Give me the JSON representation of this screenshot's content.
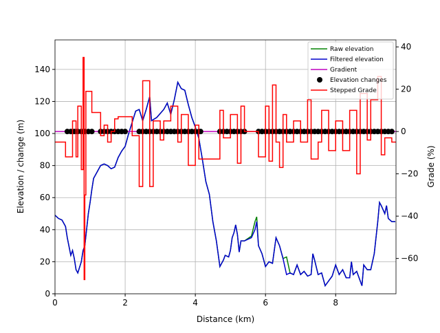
{
  "chart_data": {
    "type": "line",
    "xlabel": "Distance (km)",
    "ylabel": "Elevation / change (m)",
    "y2label": "Grade (%)",
    "xlim": [
      0,
      9.72
    ],
    "ylim": [
      0,
      158.4
    ],
    "y2lim": [
      -76.7,
      43.3
    ],
    "xticks": [
      0,
      2,
      4,
      6,
      8
    ],
    "yticks": [
      0,
      20,
      40,
      60,
      80,
      100,
      120,
      140
    ],
    "y2ticks": [
      {
        "value": -60,
        "label": "−60"
      },
      {
        "value": -40,
        "label": "−40"
      },
      {
        "value": -20,
        "label": "−20"
      },
      0,
      20,
      40
    ],
    "grid": true,
    "legend": "upper right",
    "series": [
      {
        "name": "Raw elevation",
        "color": "#008000",
        "style": "line",
        "x": [
          0,
          0.1,
          0.2,
          0.3,
          0.35,
          0.45,
          0.5,
          0.55,
          0.6,
          0.65,
          0.75,
          0.8,
          0.85,
          0.9,
          0.95,
          1.0,
          1.05,
          1.1,
          1.2,
          1.3,
          1.4,
          1.5,
          1.6,
          1.7,
          1.8,
          1.9,
          2.0,
          2.1,
          2.2,
          2.3,
          2.4,
          2.5,
          2.6,
          2.7,
          2.75,
          2.9,
          3.1,
          3.2,
          3.3,
          3.4,
          3.5,
          3.6,
          3.7,
          3.8,
          3.9,
          4.0,
          4.1,
          4.2,
          4.3,
          4.4,
          4.5,
          4.6,
          4.7,
          4.8,
          4.85,
          4.95,
          5.0,
          5.05,
          5.1,
          5.15,
          5.2,
          5.25,
          5.3,
          5.4,
          5.6,
          5.7,
          5.75,
          5.8,
          5.9,
          6.0,
          6.1,
          6.2,
          6.3,
          6.4,
          6.5,
          6.6,
          6.7,
          6.8,
          6.9,
          7.0,
          7.1,
          7.2,
          7.3,
          7.35,
          7.4,
          7.5,
          7.6,
          7.7,
          7.8,
          7.9,
          8.0,
          8.1,
          8.2,
          8.3,
          8.4,
          8.45,
          8.5,
          8.6,
          8.7,
          8.75,
          8.8,
          8.9,
          9.0,
          9.1,
          9.2,
          9.25,
          9.3,
          9.4,
          9.45,
          9.5,
          9.6,
          9.7
        ],
        "values": [
          49,
          47,
          46,
          42,
          35,
          24,
          27,
          22,
          15,
          13,
          20,
          27,
          30,
          40,
          50,
          57,
          65,
          72,
          76,
          80,
          81,
          80,
          78,
          79,
          85,
          89,
          92,
          100,
          107,
          114,
          115,
          108,
          115,
          123,
          108,
          110,
          115,
          119,
          112,
          121,
          132,
          128,
          127,
          118,
          110,
          104,
          97,
          84,
          70,
          62,
          45,
          33,
          17,
          21,
          24,
          23,
          27,
          35,
          38,
          43,
          37,
          26,
          33,
          33,
          36,
          45,
          48,
          30,
          25,
          17,
          20,
          19,
          35,
          30,
          22,
          23,
          13,
          12,
          18,
          12,
          14,
          11,
          12,
          25,
          21,
          12,
          13,
          5,
          8,
          11,
          18,
          12,
          15,
          10,
          10,
          20,
          12,
          14,
          8,
          5,
          18,
          15,
          15,
          25,
          45,
          57,
          55,
          50,
          55,
          47,
          45,
          45
        ]
      },
      {
        "name": "Filtered elevation",
        "color": "#0000cc",
        "style": "line",
        "x": [
          0,
          0.1,
          0.2,
          0.3,
          0.35,
          0.45,
          0.5,
          0.55,
          0.6,
          0.65,
          0.75,
          0.8,
          0.85,
          0.9,
          0.95,
          1.0,
          1.05,
          1.1,
          1.2,
          1.3,
          1.4,
          1.5,
          1.6,
          1.7,
          1.8,
          1.9,
          2.0,
          2.1,
          2.2,
          2.3,
          2.4,
          2.5,
          2.6,
          2.7,
          2.75,
          2.9,
          3.1,
          3.2,
          3.3,
          3.4,
          3.5,
          3.6,
          3.7,
          3.8,
          3.9,
          4.0,
          4.1,
          4.2,
          4.3,
          4.4,
          4.5,
          4.6,
          4.7,
          4.8,
          4.85,
          4.95,
          5.0,
          5.05,
          5.1,
          5.15,
          5.2,
          5.25,
          5.3,
          5.4,
          5.6,
          5.7,
          5.75,
          5.8,
          5.9,
          6.0,
          6.1,
          6.2,
          6.3,
          6.4,
          6.5,
          6.6,
          6.7,
          6.8,
          6.9,
          7.0,
          7.1,
          7.2,
          7.3,
          7.35,
          7.4,
          7.5,
          7.6,
          7.7,
          7.8,
          7.9,
          8.0,
          8.1,
          8.2,
          8.3,
          8.4,
          8.45,
          8.5,
          8.6,
          8.7,
          8.75,
          8.8,
          8.9,
          9.0,
          9.1,
          9.2,
          9.25,
          9.3,
          9.4,
          9.45,
          9.5,
          9.6,
          9.7
        ],
        "values": [
          49,
          47,
          46,
          42,
          35,
          24,
          27,
          22,
          15,
          13,
          20,
          27,
          30,
          40,
          50,
          57,
          65,
          72,
          76,
          80,
          81,
          80,
          78,
          79,
          85,
          89,
          92,
          100,
          107,
          114,
          115,
          108,
          115,
          123,
          108,
          110,
          115,
          119,
          112,
          121,
          132,
          128,
          127,
          118,
          110,
          104,
          97,
          84,
          70,
          62,
          45,
          33,
          17,
          21,
          24,
          23,
          27,
          35,
          38,
          43,
          37,
          26,
          33,
          33,
          35,
          40,
          45,
          30,
          25,
          17,
          20,
          19,
          35,
          30,
          22,
          12,
          13,
          12,
          18,
          12,
          14,
          11,
          12,
          25,
          21,
          12,
          13,
          5,
          8,
          11,
          18,
          12,
          15,
          10,
          10,
          20,
          12,
          14,
          8,
          5,
          18,
          15,
          15,
          25,
          45,
          57,
          55,
          50,
          55,
          47,
          45,
          45
        ]
      },
      {
        "name": "Gradient",
        "color": "#bf00bf",
        "style": "line",
        "axis": "y2",
        "x": [
          0,
          9.72
        ],
        "values": [
          0,
          0
        ]
      },
      {
        "name": "Elevation changes",
        "color": "#000000",
        "style": "markers",
        "axis": "y2",
        "x": [
          0.35,
          0.45,
          0.55,
          0.65,
          0.75,
          0.85,
          0.95,
          1.05,
          1.3,
          1.4,
          1.5,
          1.6,
          1.7,
          1.8,
          1.9,
          2.0,
          2.4,
          2.5,
          2.6,
          2.7,
          2.8,
          2.9,
          3.0,
          3.1,
          3.2,
          3.3,
          3.4,
          3.5,
          3.6,
          3.7,
          3.8,
          3.9,
          4.0,
          4.1,
          4.15,
          4.7,
          4.8,
          4.9,
          5.0,
          5.1,
          5.2,
          5.3,
          5.4,
          5.8,
          5.9,
          6.0,
          6.1,
          6.2,
          6.3,
          6.4,
          6.5,
          6.6,
          6.7,
          6.8,
          6.9,
          7.0,
          7.1,
          7.2,
          7.3,
          7.4,
          7.5,
          7.6,
          7.7,
          7.8,
          7.9,
          8.0,
          8.1,
          8.2,
          8.3,
          8.4,
          8.5,
          8.6,
          8.7,
          8.8,
          8.9,
          9.0,
          9.1,
          9.2,
          9.3,
          9.4,
          9.5,
          9.6
        ],
        "values": [
          0,
          0,
          0,
          0,
          0,
          0,
          0,
          0,
          0,
          0,
          0,
          0,
          0,
          0,
          0,
          0,
          0,
          0,
          0,
          0,
          0,
          0,
          0,
          0,
          0,
          0,
          0,
          0,
          0,
          0,
          0,
          0,
          0,
          0,
          0,
          0,
          0,
          0,
          0,
          0,
          0,
          0,
          0,
          0,
          0,
          0,
          0,
          0,
          0,
          0,
          0,
          0,
          0,
          0,
          0,
          0,
          0,
          0,
          0,
          0,
          0,
          0,
          0,
          0,
          0,
          0,
          0,
          0,
          0,
          0,
          0,
          0,
          0,
          0,
          0,
          0,
          0,
          0,
          0,
          0,
          0,
          0
        ]
      },
      {
        "name": "Stepped Grade",
        "color": "#ff0000",
        "style": "steps",
        "axis": "y2",
        "x": [
          0,
          0.3,
          0.5,
          0.6,
          0.65,
          0.75,
          0.8,
          0.83,
          0.85,
          0.88,
          1.05,
          1.3,
          1.4,
          1.5,
          1.6,
          1.7,
          1.8,
          2.0,
          2.2,
          2.4,
          2.5,
          2.7,
          2.8,
          3.0,
          3.1,
          3.3,
          3.5,
          3.6,
          3.8,
          4.0,
          4.1,
          4.7,
          4.8,
          5.0,
          5.2,
          5.3,
          5.4,
          5.8,
          6.0,
          6.1,
          6.2,
          6.3,
          6.4,
          6.5,
          6.6,
          6.8,
          7.0,
          7.2,
          7.3,
          7.5,
          7.6,
          7.8,
          8.0,
          8.2,
          8.4,
          8.6,
          8.7,
          8.9,
          9.0,
          9.2,
          9.3,
          9.4,
          9.6,
          9.72
        ],
        "values": [
          -5,
          -12,
          5,
          -12,
          12,
          -18,
          35,
          -70,
          -30,
          19,
          9,
          -2,
          3,
          -5,
          0,
          6,
          7,
          7,
          -2,
          -26,
          24,
          -26,
          5,
          -4,
          5,
          12,
          -5,
          8,
          -16,
          3,
          -13,
          10,
          -3,
          8,
          -15,
          12,
          0,
          -12,
          12,
          -14,
          22,
          -5,
          -17,
          8,
          -5,
          5,
          -5,
          15,
          -13,
          -5,
          10,
          -9,
          5,
          -9,
          10,
          -20,
          18,
          -4,
          15,
          26,
          -11,
          -3,
          -5,
          -5
        ]
      }
    ]
  }
}
